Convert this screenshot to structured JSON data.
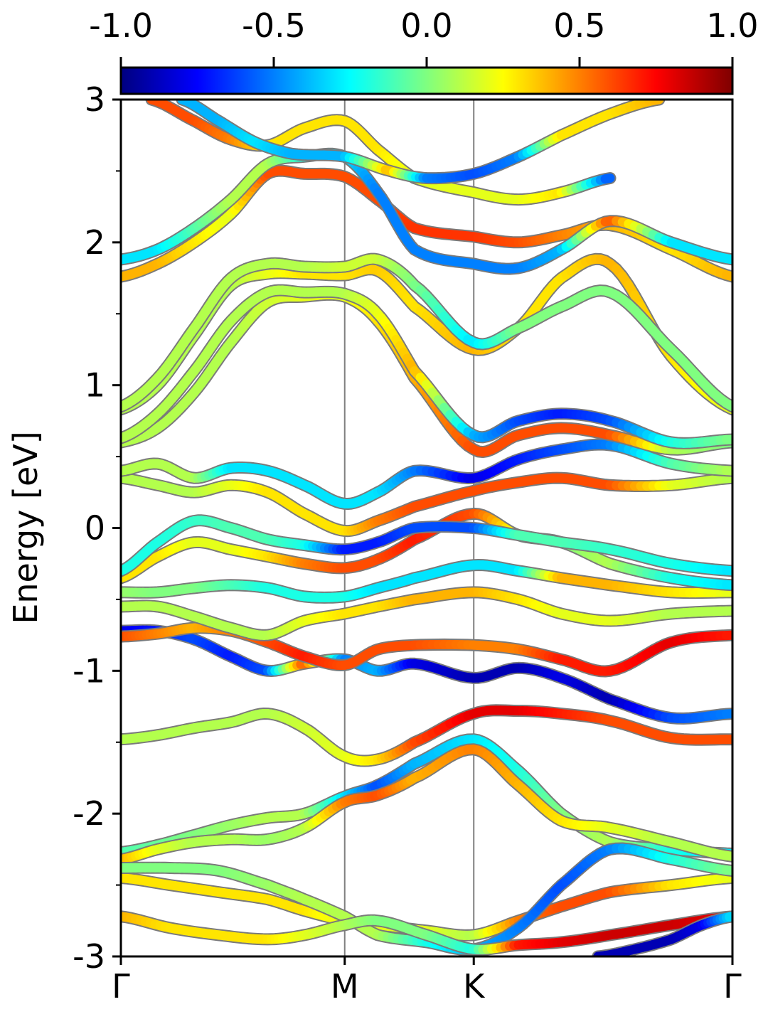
{
  "chart_data": {
    "type": "line",
    "title": "",
    "xlabel": "",
    "ylabel": "Energy [eV]",
    "ylim": [
      -3,
      3
    ],
    "yticks": [
      "-3",
      "-2",
      "-1",
      "0",
      "1",
      "2",
      "3"
    ],
    "xticks": [
      {
        "label": "Γ",
        "k": 0.0
      },
      {
        "label": "M",
        "k": 0.366
      },
      {
        "label": "K",
        "k": 0.577
      },
      {
        "label": "Γ",
        "k": 1.0
      }
    ],
    "colorbar": {
      "colormap": "jet",
      "range": [
        -1.0,
        1.0
      ],
      "ticks": [
        "-1.0",
        "-0.5",
        "0.0",
        "0.5",
        "1.0"
      ]
    },
    "grid": false,
    "series": [
      {
        "x": [
          0,
          0.06,
          0.12,
          0.18,
          0.24,
          0.3,
          0.366,
          0.42,
          0.48,
          0.577,
          0.65,
          0.72,
          0.8,
          0.9,
          1.0
        ],
        "y": [
          -2.27,
          -2.22,
          -2.15,
          -2.08,
          -2.03,
          -2.0,
          -1.88,
          -1.8,
          -1.65,
          -1.48,
          -1.7,
          -2.0,
          -2.2,
          -2.25,
          -2.28
        ],
        "c": [
          -0.1,
          -0.05,
          0,
          0.05,
          0.1,
          0.1,
          -0.3,
          -0.6,
          -0.4,
          -0.3,
          -0.2,
          0,
          0.1,
          -0.2,
          -0.3
        ]
      },
      {
        "x": [
          0,
          0.06,
          0.12,
          0.18,
          0.24,
          0.3,
          0.366,
          0.42,
          0.48,
          0.577,
          0.65,
          0.72,
          0.8,
          0.9,
          1.0
        ],
        "y": [
          -2.32,
          -2.25,
          -2.2,
          -2.18,
          -2.18,
          -2.1,
          -1.92,
          -1.87,
          -1.75,
          -1.55,
          -1.8,
          -2.05,
          -2.1,
          -2.2,
          -2.3
        ],
        "c": [
          0.4,
          0.2,
          0.1,
          0.1,
          0.05,
          0.1,
          0.5,
          0.6,
          0.4,
          0.5,
          0.4,
          0.3,
          0.2,
          0.1,
          0.1
        ]
      },
      {
        "x": [
          0,
          0.06,
          0.12,
          0.18,
          0.24,
          0.3,
          0.366,
          0.42,
          0.48,
          0.577,
          0.65,
          0.72,
          0.8,
          0.9,
          1.0
        ],
        "y": [
          -1.48,
          -1.45,
          -1.4,
          -1.36,
          -1.3,
          -1.4,
          -1.6,
          -1.62,
          -1.5,
          -1.3,
          -1.28,
          -1.3,
          -1.35,
          -1.47,
          -1.48
        ],
        "c": [
          0.1,
          0.1,
          0.1,
          0.1,
          0.1,
          0.15,
          0.2,
          0.3,
          0.6,
          0.8,
          0.8,
          0.7,
          0.6,
          0.6,
          0.6
        ]
      },
      {
        "x": [
          0,
          0.06,
          0.12,
          0.18,
          0.24,
          0.3,
          0.366,
          0.42,
          0.48,
          0.577,
          0.65,
          0.72,
          0.8,
          0.9,
          1.0
        ],
        "y": [
          -0.72,
          -0.72,
          -0.78,
          -0.9,
          -1.0,
          -0.95,
          -0.92,
          -1.0,
          -0.95,
          -1.05,
          -0.98,
          -1.05,
          -1.2,
          -1.33,
          -1.3
        ],
        "c": [
          -0.8,
          -0.7,
          -0.6,
          -0.7,
          -0.6,
          0.6,
          -0.5,
          -0.4,
          -0.8,
          -0.9,
          -0.9,
          -0.8,
          -0.9,
          -0.6,
          -0.5
        ]
      },
      {
        "x": [
          0,
          0.06,
          0.12,
          0.18,
          0.24,
          0.3,
          0.366,
          0.42,
          0.48,
          0.577,
          0.65,
          0.72,
          0.8,
          0.9,
          1.0
        ],
        "y": [
          -0.76,
          -0.74,
          -0.7,
          -0.72,
          -0.8,
          -0.9,
          -0.96,
          -0.85,
          -0.82,
          -0.82,
          -0.85,
          -0.92,
          -1.0,
          -0.8,
          -0.75
        ],
        "c": [
          0.6,
          0.5,
          0.4,
          0.5,
          0.6,
          0.7,
          0.6,
          0.6,
          0.6,
          0.5,
          0.5,
          0.7,
          0.7,
          0.8,
          0.7
        ]
      },
      {
        "x": [
          0,
          0.06,
          0.12,
          0.18,
          0.24,
          0.3,
          0.366,
          0.42,
          0.48,
          0.577,
          0.65,
          0.72,
          0.8,
          0.9,
          1.0
        ],
        "y": [
          -0.55,
          -0.55,
          -0.62,
          -0.7,
          -0.75,
          -0.65,
          -0.6,
          -0.55,
          -0.5,
          -0.45,
          -0.5,
          -0.6,
          -0.65,
          -0.6,
          -0.58
        ],
        "c": [
          0.1,
          0.1,
          0.1,
          0.1,
          0.1,
          0.2,
          0.3,
          0.3,
          0.4,
          0.4,
          0.3,
          0.2,
          0.2,
          0.1,
          0.1
        ]
      },
      {
        "x": [
          0,
          0.06,
          0.12,
          0.18,
          0.24,
          0.3,
          0.366,
          0.42,
          0.48,
          0.577,
          0.65,
          0.72,
          0.8,
          0.9,
          1.0
        ],
        "y": [
          -0.45,
          -0.45,
          -0.42,
          -0.4,
          -0.42,
          -0.48,
          -0.48,
          -0.42,
          -0.35,
          -0.26,
          -0.3,
          -0.35,
          -0.4,
          -0.45,
          -0.45
        ],
        "c": [
          0.05,
          0,
          0,
          -0.1,
          -0.2,
          -0.2,
          -0.2,
          -0.3,
          -0.3,
          -0.3,
          -0.3,
          0.4,
          0.4,
          0.3,
          0.2
        ]
      },
      {
        "x": [
          0,
          0.06,
          0.12,
          0.18,
          0.24,
          0.3,
          0.366,
          0.42,
          0.48,
          0.577,
          0.65,
          0.72,
          0.8,
          0.9,
          1.0
        ],
        "y": [
          -0.35,
          -0.2,
          -0.1,
          -0.15,
          -0.2,
          -0.25,
          -0.28,
          -0.22,
          -0.08,
          0.1,
          -0.05,
          -0.1,
          -0.25,
          -0.35,
          -0.4
        ],
        "c": [
          0.3,
          0.3,
          0.2,
          0.2,
          0.3,
          0.5,
          0.6,
          0.6,
          0.7,
          0.6,
          0.2,
          0.0,
          0.1,
          -0.2,
          -0.3
        ]
      },
      {
        "x": [
          0,
          0.06,
          0.12,
          0.18,
          0.24,
          0.3,
          0.366,
          0.42,
          0.48,
          0.577,
          0.65,
          0.72,
          0.8,
          0.9,
          1.0
        ],
        "y": [
          -0.3,
          -0.1,
          0.05,
          0.0,
          -0.08,
          -0.12,
          -0.15,
          -0.1,
          0.0,
          0.0,
          -0.05,
          -0.1,
          -0.15,
          -0.25,
          -0.3
        ],
        "c": [
          -0.2,
          -0.2,
          -0.15,
          -0.1,
          -0.1,
          -0.2,
          -0.7,
          -0.7,
          -0.6,
          -0.6,
          -0.1,
          -0.1,
          -0.15,
          -0.2,
          -0.3
        ]
      },
      {
        "x": [
          0,
          0.06,
          0.12,
          0.18,
          0.24,
          0.3,
          0.366,
          0.42,
          0.48,
          0.577,
          0.65,
          0.72,
          0.8,
          0.9,
          1.0
        ],
        "y": [
          0.35,
          0.3,
          0.25,
          0.3,
          0.25,
          0.1,
          -0.02,
          0.05,
          0.15,
          0.26,
          0.32,
          0.35,
          0.3,
          0.3,
          0.35
        ],
        "c": [
          0.1,
          0.1,
          0.1,
          0.2,
          0.3,
          0.3,
          0.3,
          0.5,
          0.6,
          0.6,
          0.6,
          0.6,
          0.6,
          0.2,
          0.1
        ]
      },
      {
        "x": [
          0,
          0.06,
          0.12,
          0.18,
          0.24,
          0.3,
          0.366,
          0.42,
          0.48,
          0.577,
          0.65,
          0.72,
          0.8,
          0.9,
          1.0
        ],
        "y": [
          0.4,
          0.45,
          0.35,
          0.42,
          0.4,
          0.3,
          0.17,
          0.25,
          0.4,
          0.35,
          0.48,
          0.55,
          0.58,
          0.45,
          0.4
        ],
        "c": [
          0.1,
          0.1,
          0.1,
          -0.3,
          -0.3,
          -0.3,
          -0.3,
          -0.3,
          -0.5,
          -0.8,
          -0.7,
          -0.6,
          -0.5,
          -0.1,
          0.1
        ]
      },
      {
        "x": [
          0,
          0.06,
          0.12,
          0.18,
          0.24,
          0.3,
          0.366,
          0.42,
          0.48,
          0.577,
          0.65,
          0.72,
          0.8,
          0.9,
          1.0
        ],
        "y": [
          0.6,
          0.7,
          0.95,
          1.3,
          1.58,
          1.62,
          1.62,
          1.45,
          1.05,
          0.55,
          0.65,
          0.7,
          0.65,
          0.55,
          0.6
        ],
        "c": [
          0.1,
          0.1,
          0.1,
          0.1,
          0.15,
          0.2,
          0.2,
          0.3,
          0.4,
          0.6,
          0.6,
          0.6,
          0.6,
          0.1,
          0.0
        ]
      },
      {
        "x": [
          0,
          0.06,
          0.12,
          0.18,
          0.24,
          0.3,
          0.366,
          0.42,
          0.48,
          0.577,
          0.65,
          0.72,
          0.8,
          0.9,
          1.0
        ],
        "y": [
          0.63,
          0.8,
          1.1,
          1.45,
          1.65,
          1.65,
          1.64,
          1.5,
          1.1,
          0.65,
          0.75,
          0.8,
          0.75,
          0.6,
          0.62
        ],
        "c": [
          0.1,
          0.1,
          0.1,
          0.1,
          0.1,
          0.1,
          0.1,
          0.2,
          0.4,
          -0.4,
          -0.6,
          -0.7,
          -0.6,
          -0.2,
          0.0
        ]
      },
      {
        "x": [
          0,
          0.06,
          0.12,
          0.18,
          0.24,
          0.3,
          0.366,
          0.42,
          0.48,
          0.577,
          0.65,
          0.72,
          0.8,
          0.9,
          1.0
        ],
        "y": [
          0.83,
          1.0,
          1.35,
          1.7,
          1.78,
          1.78,
          1.77,
          1.8,
          1.55,
          1.25,
          1.4,
          1.75,
          1.85,
          1.2,
          0.83
        ],
        "c": [
          0.1,
          0.1,
          0.1,
          0.1,
          0.2,
          0.3,
          0.3,
          0.35,
          0.3,
          0.4,
          0.3,
          0.3,
          0.4,
          0.3,
          0.2
        ]
      },
      {
        "x": [
          0,
          0.06,
          0.12,
          0.18,
          0.24,
          0.3,
          0.366,
          0.42,
          0.48,
          0.577,
          0.65,
          0.72,
          0.8,
          0.9,
          1.0
        ],
        "y": [
          0.85,
          1.05,
          1.4,
          1.75,
          1.85,
          1.83,
          1.83,
          1.88,
          1.7,
          1.3,
          1.4,
          1.55,
          1.65,
          1.25,
          0.85
        ],
        "c": [
          0.1,
          0.1,
          0.1,
          0.1,
          0.1,
          0.1,
          0.15,
          0.15,
          0.0,
          -0.3,
          0.0,
          0.0,
          0.0,
          0.0,
          0.0
        ]
      },
      {
        "x": [
          0,
          0.06,
          0.12,
          0.18,
          0.24,
          0.3,
          0.366,
          0.42,
          0.48,
          0.577,
          0.65,
          0.72,
          0.8,
          0.9,
          1.0
        ],
        "y": [
          1.76,
          1.85,
          2.0,
          2.2,
          2.48,
          2.48,
          2.46,
          2.3,
          2.1,
          2.04,
          2.0,
          2.05,
          2.12,
          1.95,
          1.76
        ],
        "c": [
          0.4,
          0.4,
          0.3,
          0.2,
          0.6,
          0.6,
          0.6,
          0.6,
          0.65,
          0.65,
          0.6,
          0.5,
          0.4,
          0.3,
          0.4
        ]
      },
      {
        "x": [
          0,
          0.06,
          0.12,
          0.18,
          0.24,
          0.3,
          0.366,
          0.42,
          0.48,
          0.577,
          0.65,
          0.72,
          0.8,
          0.9,
          1.0
        ],
        "y": [
          1.88,
          1.95,
          2.1,
          2.3,
          2.55,
          2.6,
          2.6,
          2.35,
          1.95,
          1.85,
          1.82,
          1.95,
          2.15,
          2.0,
          1.88
        ],
        "c": [
          -0.3,
          -0.3,
          -0.1,
          0.1,
          0.1,
          -0.2,
          -0.3,
          -0.5,
          -0.5,
          -0.5,
          -0.5,
          -0.4,
          0.6,
          -0.3,
          -0.3
        ]
      },
      {
        "x": [
          0.05,
          0.12,
          0.18,
          0.24,
          0.3,
          0.366,
          0.42,
          0.48,
          0.577,
          0.65,
          0.72,
          0.8
        ],
        "y": [
          3.0,
          2.85,
          2.72,
          2.68,
          2.8,
          2.85,
          2.65,
          2.45,
          2.35,
          2.3,
          2.35,
          2.45
        ],
        "c": [
          0.6,
          0.6,
          0.5,
          0.3,
          0.3,
          0.3,
          0.3,
          0.2,
          0.2,
          0.2,
          0.3,
          -0.6
        ]
      },
      {
        "x": [
          0.1,
          0.16,
          0.22,
          0.28,
          0.366,
          0.44,
          0.5,
          0.577,
          0.65,
          0.72,
          0.8,
          0.88
        ],
        "y": [
          3.0,
          2.85,
          2.7,
          2.62,
          2.6,
          2.5,
          2.45,
          2.48,
          2.6,
          2.75,
          2.9,
          3.0
        ],
        "c": [
          -0.4,
          -0.4,
          -0.3,
          -0.4,
          -0.4,
          0.4,
          -0.5,
          -0.6,
          -0.5,
          0.3,
          0.3,
          0.4
        ]
      },
      {
        "x": [
          0,
          0.08,
          0.16,
          0.24,
          0.3,
          0.366,
          0.42,
          0.5,
          0.577,
          0.65,
          0.72,
          0.8,
          0.9,
          1.0
        ],
        "y": [
          -2.45,
          -2.5,
          -2.55,
          -2.6,
          -2.68,
          -2.75,
          -2.78,
          -2.82,
          -2.85,
          -2.75,
          -2.65,
          -2.55,
          -2.5,
          -2.45
        ],
        "c": [
          0.3,
          0.3,
          0.3,
          0.3,
          0.3,
          0.2,
          0.2,
          0.2,
          0.1,
          0.5,
          0.6,
          0.6,
          0.3,
          0.2
        ]
      },
      {
        "x": [
          0,
          0.08,
          0.16,
          0.24,
          0.3,
          0.366,
          0.42,
          0.5,
          0.577,
          0.65,
          0.72,
          0.8,
          0.9,
          1.0
        ],
        "y": [
          -2.38,
          -2.38,
          -2.4,
          -2.5,
          -2.6,
          -2.72,
          -2.85,
          -2.9,
          -2.95,
          -2.8,
          -2.5,
          -2.25,
          -2.32,
          -2.4
        ],
        "c": [
          0.0,
          0.0,
          0.0,
          0.05,
          0.1,
          0.1,
          0.1,
          -0.2,
          -0.4,
          -0.5,
          -0.6,
          -0.5,
          -0.2,
          0.0
        ]
      },
      {
        "x": [
          0,
          0.08,
          0.16,
          0.24,
          0.3,
          0.366,
          0.42,
          0.5,
          0.577,
          0.65,
          0.72,
          0.8,
          0.9,
          1.0
        ],
        "y": [
          -2.72,
          -2.8,
          -2.85,
          -2.88,
          -2.85,
          -2.78,
          -2.75,
          -2.85,
          -2.95,
          -2.92,
          -2.9,
          -2.85,
          -2.78,
          -2.72
        ],
        "c": [
          0.4,
          0.3,
          0.3,
          0.3,
          0.2,
          0.1,
          0.0,
          0.0,
          -0.2,
          0.7,
          0.8,
          0.85,
          0.85,
          0.8
        ]
      },
      {
        "x": [
          0.78,
          0.84,
          0.9,
          0.95,
          1.0
        ],
        "y": [
          -3.0,
          -2.95,
          -2.88,
          -2.78,
          -2.72
        ],
        "c": [
          -0.9,
          -0.9,
          -0.9,
          -0.8,
          -0.3
        ]
      }
    ]
  }
}
